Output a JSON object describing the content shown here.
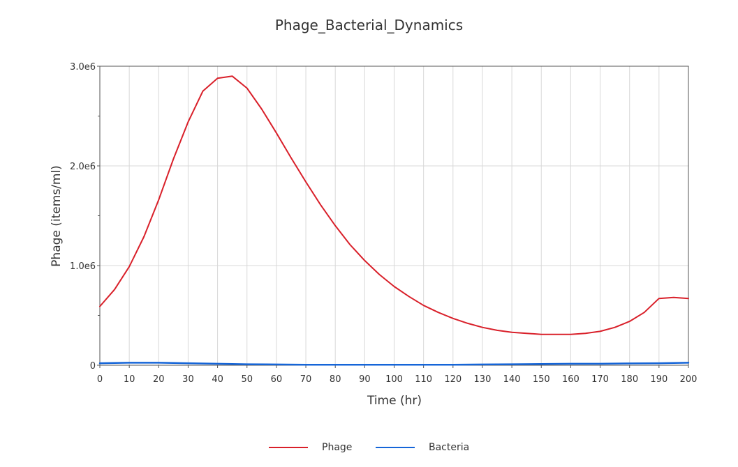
{
  "chart_data": {
    "type": "line",
    "title": "Phage_Bacterial_Dynamics",
    "xlabel": "Time (hr)",
    "ylabel": "Phage (items/ml)",
    "xlim": [
      0,
      200
    ],
    "ylim": [
      0,
      3000000
    ],
    "x_ticks": [
      "0",
      "10",
      "20",
      "30",
      "40",
      "50",
      "60",
      "70",
      "80",
      "90",
      "100",
      "110",
      "120",
      "130",
      "140",
      "150",
      "160",
      "170",
      "180",
      "190",
      "200"
    ],
    "y_ticks": [
      {
        "value": 0,
        "label": "0"
      },
      {
        "value": 1000000,
        "label": "1.0e6"
      },
      {
        "value": 2000000,
        "label": "2.0e6"
      },
      {
        "value": 3000000,
        "label": "3.0e6"
      }
    ],
    "grid": true,
    "legend_position": "bottom",
    "series": [
      {
        "name": "Phage",
        "color": "#d9202a",
        "x": [
          0,
          5,
          10,
          15,
          20,
          25,
          30,
          35,
          40,
          45,
          50,
          55,
          60,
          65,
          70,
          75,
          80,
          85,
          90,
          95,
          100,
          105,
          110,
          115,
          120,
          125,
          130,
          135,
          140,
          145,
          150,
          155,
          160,
          165,
          170,
          175,
          180,
          185,
          190,
          195,
          200
        ],
        "y": [
          590000,
          760000,
          990000,
          1290000,
          1660000,
          2070000,
          2440000,
          2750000,
          2880000,
          2900000,
          2780000,
          2570000,
          2330000,
          2080000,
          1840000,
          1610000,
          1400000,
          1210000,
          1050000,
          910000,
          790000,
          690000,
          600000,
          530000,
          470000,
          420000,
          380000,
          350000,
          330000,
          320000,
          310000,
          310000,
          310000,
          320000,
          340000,
          380000,
          440000,
          530000,
          670000,
          680000,
          670000
        ]
      },
      {
        "name": "Bacteria",
        "color": "#1565d8",
        "x": [
          0,
          10,
          20,
          30,
          40,
          50,
          60,
          70,
          80,
          90,
          100,
          110,
          120,
          130,
          140,
          150,
          160,
          170,
          180,
          190,
          200
        ],
        "y": [
          20000,
          25000,
          25000,
          20000,
          15000,
          10000,
          8000,
          5000,
          5000,
          5000,
          5000,
          5000,
          5000,
          8000,
          10000,
          12000,
          15000,
          15000,
          18000,
          20000,
          25000
        ]
      }
    ]
  }
}
